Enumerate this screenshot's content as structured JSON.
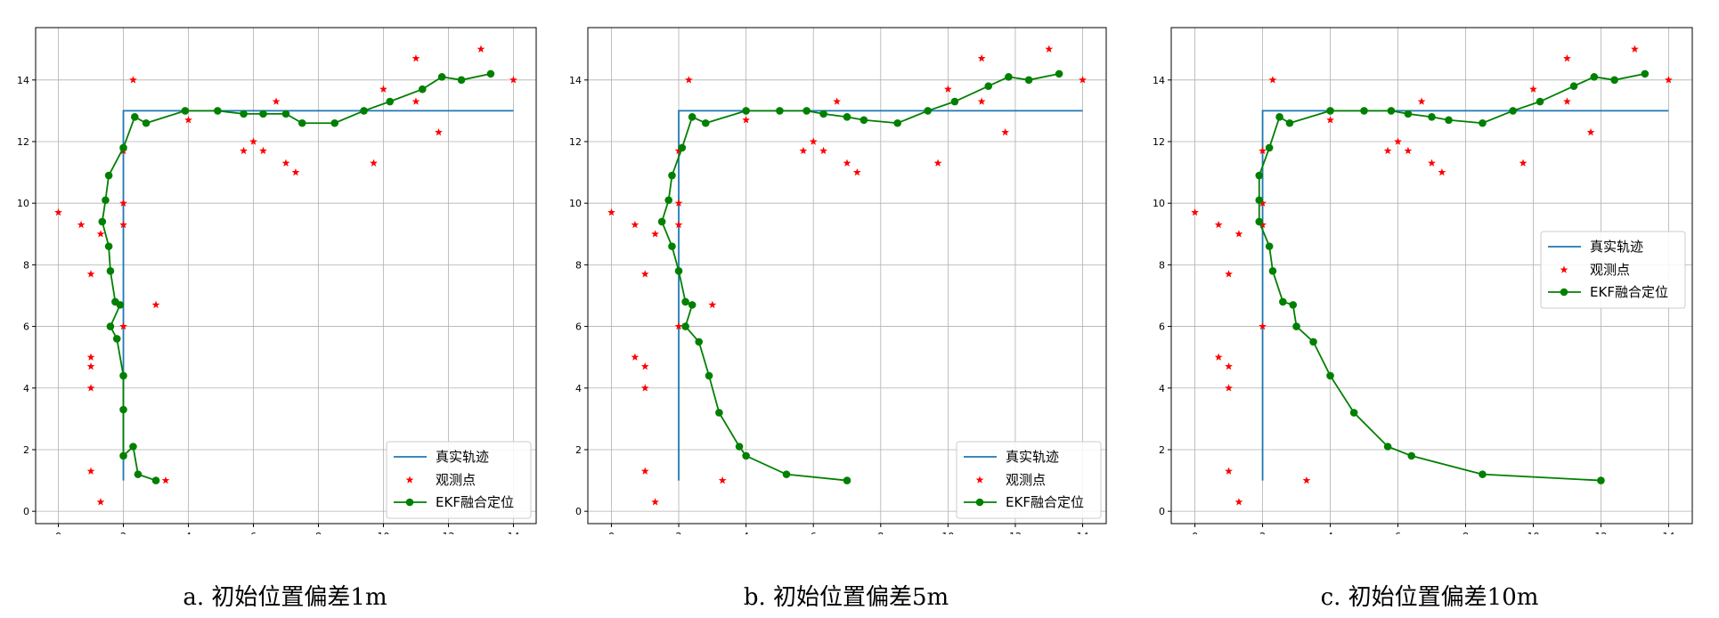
{
  "colors": {
    "truth": "#1f77b4",
    "obs": "#ff0000",
    "ekf": "#008000",
    "grid": "#b0b0b0"
  },
  "legend": {
    "truth": "真实轨迹",
    "obs": "观测点",
    "ekf": "EKF融合定位"
  },
  "captions": [
    "a. 初始位置偏差1m",
    "b. 初始位置偏差5m",
    "c. 初始位置偏差10m"
  ],
  "chart_data": [
    {
      "type": "line",
      "xlim": [
        -0.7,
        14.7
      ],
      "ylim": [
        -0.4,
        15.7
      ],
      "xticks": [
        0,
        2,
        4,
        6,
        8,
        10,
        12,
        14
      ],
      "yticks": [
        0,
        2,
        4,
        6,
        8,
        10,
        12,
        14
      ],
      "grid": true,
      "legend_position": "lower-right",
      "truth": {
        "x": [
          2,
          2,
          14
        ],
        "y": [
          1,
          13,
          13
        ]
      },
      "observations": {
        "x": [
          0,
          0.7,
          1,
          1.3,
          1,
          1,
          1,
          1,
          1.3,
          2,
          2,
          2,
          2,
          3,
          3.3,
          2.3,
          4,
          5.7,
          6,
          6.3,
          6.7,
          7,
          7.3,
          9.7,
          10,
          11,
          11,
          11.7,
          13,
          14
        ],
        "y": [
          9.7,
          9.3,
          7.7,
          9,
          5,
          4.7,
          4,
          1.3,
          0.3,
          11.7,
          10,
          9.3,
          6,
          6.7,
          1,
          14,
          12.7,
          11.7,
          12,
          11.7,
          13.3,
          11.3,
          11,
          11.3,
          13.7,
          14.7,
          13.3,
          12.3,
          15,
          14
        ]
      },
      "ekf": {
        "x": [
          3,
          2.45,
          2.3,
          2,
          2,
          2,
          1.8,
          1.6,
          1.9,
          1.75,
          1.6,
          1.55,
          1.35,
          1.45,
          1.55,
          2,
          2.35,
          2.7,
          3.9,
          4.9,
          5.7,
          6.3,
          7,
          7.5,
          8.5,
          9.4,
          10.2,
          11.2,
          11.8,
          12.4,
          13.3
        ],
        "y": [
          1,
          1.2,
          2.1,
          1.8,
          3.3,
          4.4,
          5.6,
          6,
          6.7,
          6.8,
          7.8,
          8.6,
          9.4,
          10.1,
          10.9,
          11.8,
          12.8,
          12.6,
          13,
          13,
          12.9,
          12.9,
          12.9,
          12.6,
          12.6,
          13,
          13.3,
          13.7,
          14.1,
          14,
          14.2
        ]
      }
    },
    {
      "type": "line",
      "xlim": [
        -0.7,
        14.7
      ],
      "ylim": [
        -0.4,
        15.7
      ],
      "xticks": [
        0,
        2,
        4,
        6,
        8,
        10,
        12,
        14
      ],
      "yticks": [
        0,
        2,
        4,
        6,
        8,
        10,
        12,
        14
      ],
      "grid": true,
      "legend_position": "lower-right",
      "truth": {
        "x": [
          2,
          2,
          14
        ],
        "y": [
          1,
          13,
          13
        ]
      },
      "observations": {
        "x": [
          0,
          0.7,
          1,
          1.3,
          0.7,
          1,
          1,
          1,
          1.3,
          2,
          2,
          2,
          2,
          3,
          3.3,
          2.3,
          4,
          5.7,
          6,
          6.3,
          6.7,
          7,
          7.3,
          9.7,
          10,
          11,
          11,
          11.7,
          13,
          14
        ],
        "y": [
          9.7,
          9.3,
          7.7,
          9,
          5,
          4.7,
          4,
          1.3,
          0.3,
          11.7,
          10,
          9.3,
          6,
          6.7,
          1,
          14,
          12.7,
          11.7,
          12,
          11.7,
          13.3,
          11.3,
          11,
          11.3,
          13.7,
          14.7,
          13.3,
          12.3,
          15,
          14
        ]
      },
      "ekf": {
        "x": [
          7,
          5.2,
          4,
          3.8,
          3.2,
          2.9,
          2.6,
          2.2,
          2.4,
          2.2,
          2,
          1.8,
          1.5,
          1.7,
          1.8,
          2.1,
          2.4,
          2.8,
          4,
          5,
          5.8,
          6.3,
          7,
          7.5,
          8.5,
          9.4,
          10.2,
          11.2,
          11.8,
          12.4,
          13.3
        ],
        "y": [
          1,
          1.2,
          1.8,
          2.1,
          3.2,
          4.4,
          5.5,
          6,
          6.7,
          6.8,
          7.8,
          8.6,
          9.4,
          10.1,
          10.9,
          11.8,
          12.8,
          12.6,
          13,
          13,
          13,
          12.9,
          12.8,
          12.7,
          12.6,
          13,
          13.3,
          13.8,
          14.1,
          14,
          14.2
        ]
      },
      "_note_ekf": ""
    },
    {
      "type": "line",
      "xlim": [
        -0.7,
        14.7
      ],
      "ylim": [
        -0.4,
        15.7
      ],
      "xticks": [
        0,
        2,
        4,
        6,
        8,
        10,
        12,
        14
      ],
      "yticks": [
        0,
        2,
        4,
        6,
        8,
        10,
        12,
        14
      ],
      "grid": true,
      "legend_position": "center-right",
      "truth": {
        "x": [
          2,
          2,
          14
        ],
        "y": [
          1,
          13,
          13
        ]
      },
      "observations": {
        "x": [
          0,
          0.7,
          1,
          1.3,
          0.7,
          1,
          1,
          1,
          1.3,
          2,
          2,
          2,
          2,
          3.3,
          2.3,
          4,
          5.7,
          6,
          6.3,
          6.7,
          7,
          7.3,
          9.7,
          10,
          11,
          11,
          11.7,
          13,
          14
        ],
        "y": [
          9.7,
          9.3,
          7.7,
          9,
          5,
          4.7,
          4,
          1.3,
          0.3,
          11.7,
          10,
          9.3,
          6,
          1,
          14,
          12.7,
          11.7,
          12,
          11.7,
          13.3,
          11.3,
          11,
          11.3,
          13.7,
          14.7,
          13.3,
          12.3,
          15,
          14
        ]
      },
      "ekf": {
        "x": [
          12,
          8.5,
          6.4,
          5.7,
          4.7,
          4,
          3.5,
          3,
          2.9,
          2.6,
          2.3,
          2.2,
          1.9,
          1.9,
          1.9,
          2.2,
          2.5,
          2.8,
          4,
          5,
          5.8,
          6.3,
          7,
          7.5,
          8.5,
          9.4,
          10.2,
          11.2,
          11.8,
          12.4,
          13.3
        ],
        "y": [
          1,
          1.2,
          1.8,
          2.1,
          3.2,
          4.4,
          5.5,
          6,
          6.7,
          6.8,
          7.8,
          8.6,
          9.4,
          10.1,
          10.9,
          11.8,
          12.8,
          12.6,
          13,
          13,
          13,
          12.9,
          12.8,
          12.7,
          12.6,
          13,
          13.3,
          13.8,
          14.1,
          14,
          14.2
        ]
      }
    }
  ]
}
